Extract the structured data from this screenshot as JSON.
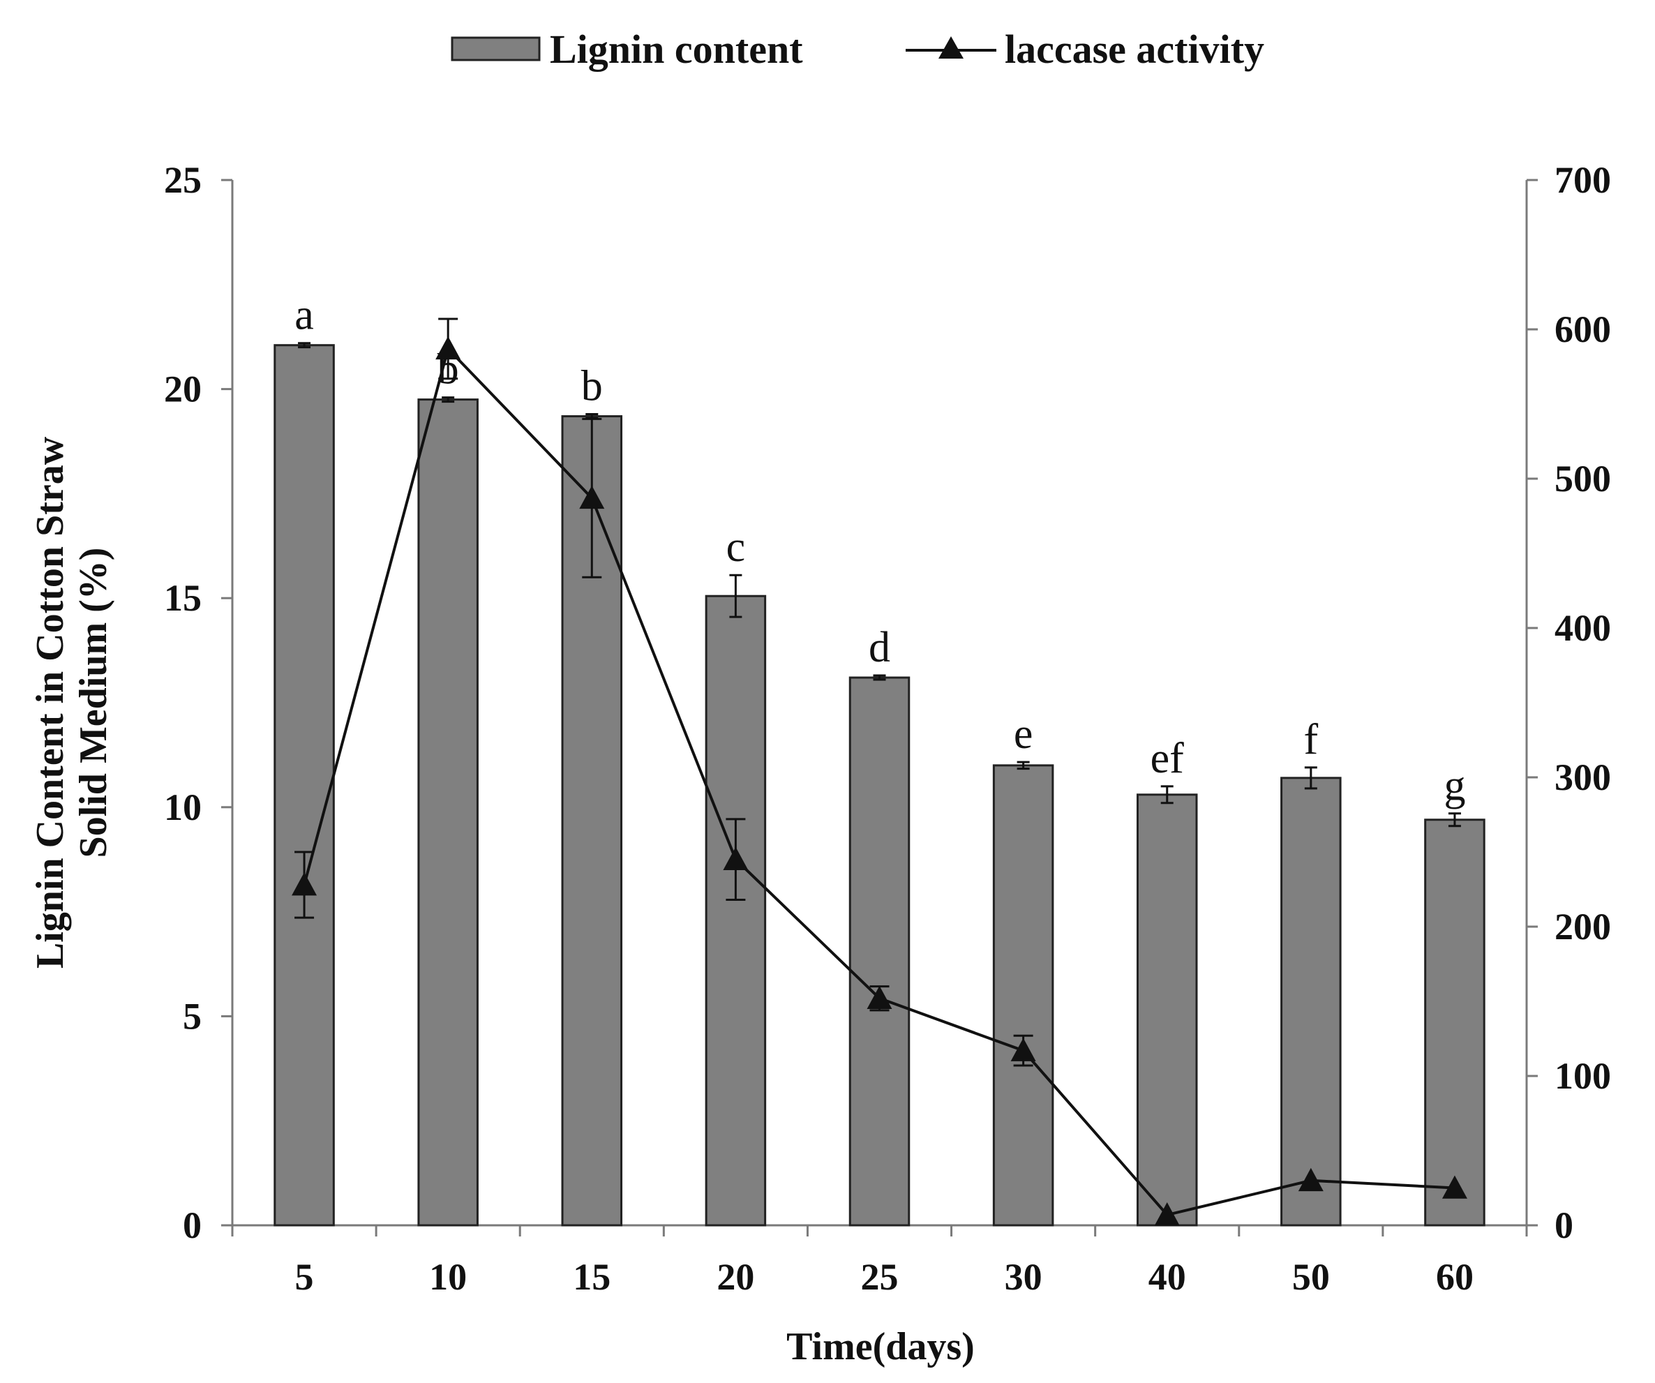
{
  "chart_data": {
    "type": "bar",
    "categories": [
      "5",
      "10",
      "15",
      "20",
      "25",
      "30",
      "40",
      "50",
      "60"
    ],
    "xlabel": "Time(days)",
    "ylabel_lines": [
      "Lignin Content in Cotton Straw",
      "Solid Medium (%)"
    ],
    "y_left": {
      "min": 0,
      "max": 25,
      "ticks": [
        0,
        5,
        10,
        15,
        20,
        25
      ]
    },
    "y_right": {
      "min": 0,
      "max": 700,
      "ticks": [
        0,
        100,
        200,
        300,
        400,
        500,
        600,
        700
      ]
    },
    "legend": {
      "placement": "top-center",
      "bar_label": "Lignin content",
      "line_label": "laccase activity"
    },
    "series": [
      {
        "name": "Lignin content",
        "kind": "bar",
        "axis": "left",
        "values": [
          21.05,
          19.75,
          19.35,
          15.05,
          13.1,
          11.0,
          10.3,
          10.7,
          9.7
        ],
        "errors": [
          0.05,
          0.05,
          0.05,
          0.5,
          0.05,
          0.08,
          0.2,
          0.25,
          0.15
        ],
        "significance": [
          "a",
          "b",
          "b",
          "c",
          "d",
          "e",
          "ef",
          "f",
          "g"
        ]
      },
      {
        "name": "laccase activity",
        "kind": "line",
        "axis": "right",
        "values": [
          228,
          587,
          487,
          245,
          152,
          117,
          7,
          30,
          25
        ],
        "errors": [
          22,
          20,
          53,
          27,
          8,
          10,
          0,
          0,
          0
        ]
      }
    ]
  }
}
